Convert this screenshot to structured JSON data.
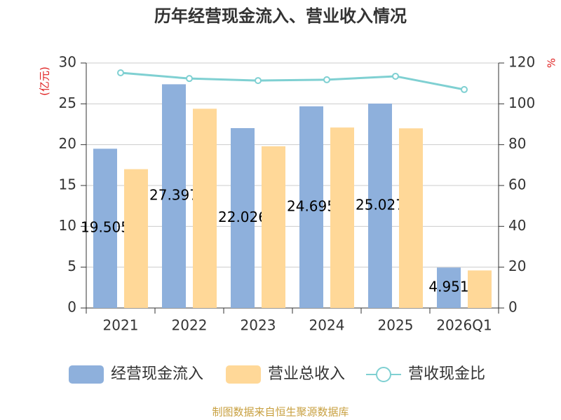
{
  "chart_data": {
    "type": "bar-line",
    "title": "历年经营现金流入、营业收入情况",
    "y_label": "(亿元)",
    "y2_label": "%",
    "source": "制图数据来自恒生聚源数据库",
    "categories": [
      "2021",
      "2022",
      "2023",
      "2024",
      "2025",
      "2026Q1"
    ],
    "series": [
      {
        "name": "经营现金流入",
        "type": "bar",
        "color": "#8eb0dc",
        "values": [
          19.505,
          27.397,
          22.026,
          24.695,
          25.027,
          4.951
        ],
        "show_labels": true
      },
      {
        "name": "营业总收入",
        "type": "bar",
        "color": "#ffd898",
        "values": [
          17.0,
          24.4,
          19.8,
          22.1,
          22.0,
          4.6
        ]
      },
      {
        "name": "营收现金比",
        "type": "line",
        "axis": "y2",
        "color": "#7fd0d2",
        "values": [
          115.2,
          112.4,
          111.4,
          111.8,
          113.5,
          107.0
        ]
      }
    ],
    "ylim": [
      0,
      30
    ],
    "yticks": [
      0,
      5,
      10,
      15,
      20,
      25,
      30
    ],
    "y2lim": [
      0,
      120
    ],
    "y2ticks": [
      0,
      20,
      40,
      60,
      80,
      100,
      120
    ],
    "grid": true
  }
}
